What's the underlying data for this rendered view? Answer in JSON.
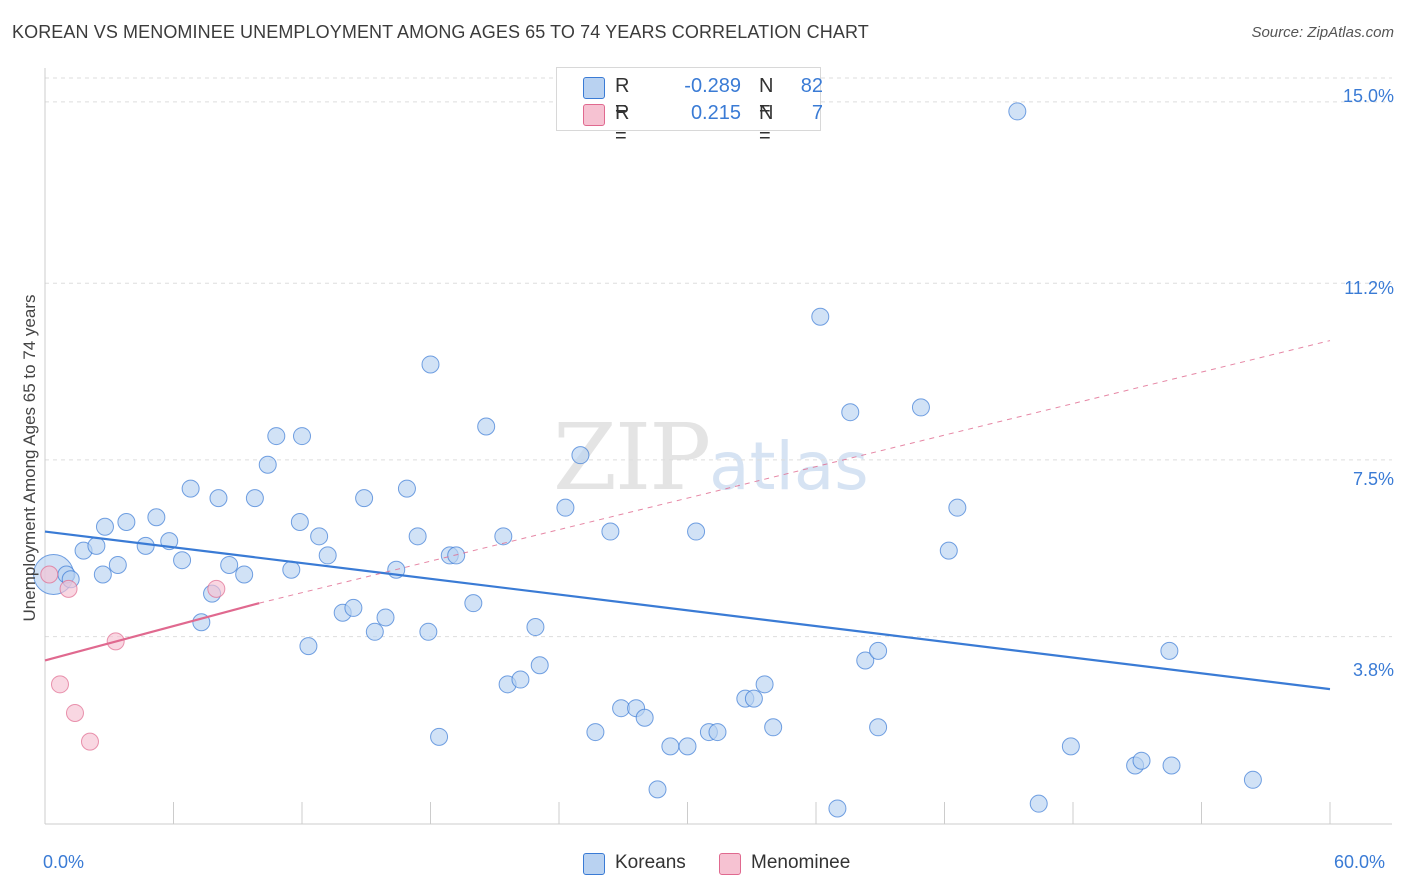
{
  "title": "KOREAN VS MENOMINEE UNEMPLOYMENT AMONG AGES 65 TO 74 YEARS CORRELATION CHART",
  "source": "Source: ZipAtlas.com",
  "watermark": {
    "zip": "ZIP",
    "atlas": "atlas"
  },
  "colors": {
    "blue": "#3a7bd5",
    "blue_fill": "#b9d2f1",
    "pink": "#e0698f",
    "pink_fill": "#f6c2d2",
    "grid": "#dddddd"
  },
  "legend": {
    "rows": [
      {
        "r_label": "R =",
        "r_value": "-0.289",
        "n_label": "N =",
        "n_value": "82"
      },
      {
        "r_label": "R =",
        "r_value": "0.215",
        "n_label": "N =",
        "n_value": "7"
      }
    ]
  },
  "chart_data": {
    "type": "scatter",
    "title": "KOREAN VS MENOMINEE UNEMPLOYMENT AMONG AGES 65 TO 74 YEARS CORRELATION CHART",
    "xlabel": "",
    "ylabel": "Unemployment Among Ages 65 to 74 years",
    "xlim": [
      0,
      60
    ],
    "ylim": [
      0,
      15.5
    ],
    "x_tick_labels": [
      "0.0%",
      "60.0%"
    ],
    "y_ticks": [
      3.8,
      7.5,
      11.2,
      15.0
    ],
    "y_tick_labels": [
      "3.8%",
      "7.5%",
      "11.2%",
      "15.0%"
    ],
    "grid": true,
    "legend_position": "top-center",
    "series": [
      {
        "name": "Koreans",
        "color": "#3a7bd5",
        "points": [
          [
            0.4,
            5.1
          ],
          [
            1.0,
            5.1
          ],
          [
            1.2,
            5.0
          ],
          [
            1.8,
            5.6
          ],
          [
            2.4,
            5.7
          ],
          [
            2.7,
            5.1
          ],
          [
            2.8,
            6.1
          ],
          [
            3.4,
            5.3
          ],
          [
            3.8,
            6.2
          ],
          [
            4.7,
            5.7
          ],
          [
            5.2,
            6.3
          ],
          [
            5.8,
            5.8
          ],
          [
            6.4,
            5.4
          ],
          [
            6.8,
            6.9
          ],
          [
            7.3,
            4.1
          ],
          [
            7.8,
            4.7
          ],
          [
            8.1,
            6.7
          ],
          [
            8.6,
            5.3
          ],
          [
            9.3,
            5.1
          ],
          [
            9.8,
            6.7
          ],
          [
            10.4,
            7.4
          ],
          [
            10.8,
            8.0
          ],
          [
            11.5,
            5.2
          ],
          [
            11.9,
            6.2
          ],
          [
            12.3,
            3.6
          ],
          [
            12.8,
            5.9
          ],
          [
            13.2,
            5.5
          ],
          [
            13.9,
            4.3
          ],
          [
            14.4,
            4.4
          ],
          [
            14.9,
            6.7
          ],
          [
            15.4,
            3.9
          ],
          [
            15.9,
            4.2
          ],
          [
            16.4,
            5.2
          ],
          [
            16.9,
            6.9
          ],
          [
            17.4,
            5.9
          ],
          [
            17.9,
            3.9
          ],
          [
            18.4,
            1.7
          ],
          [
            18.9,
            5.5
          ],
          [
            19.2,
            5.5
          ],
          [
            20.0,
            4.5
          ],
          [
            20.6,
            8.2
          ],
          [
            21.4,
            5.9
          ],
          [
            21.6,
            2.8
          ],
          [
            22.2,
            2.9
          ],
          [
            22.9,
            4.0
          ],
          [
            23.1,
            3.2
          ],
          [
            24.3,
            6.5
          ],
          [
            25.0,
            7.6
          ],
          [
            25.7,
            1.8
          ],
          [
            26.4,
            6.0
          ],
          [
            26.9,
            2.3
          ],
          [
            27.6,
            2.3
          ],
          [
            28.0,
            2.1
          ],
          [
            28.6,
            0.6
          ],
          [
            29.2,
            1.5
          ],
          [
            30.0,
            1.5
          ],
          [
            30.4,
            6.0
          ],
          [
            31.0,
            1.8
          ],
          [
            31.4,
            1.8
          ],
          [
            32.7,
            2.5
          ],
          [
            33.1,
            2.5
          ],
          [
            33.6,
            2.8
          ],
          [
            34.0,
            1.9
          ],
          [
            37.0,
            0.2
          ],
          [
            37.6,
            8.5
          ],
          [
            38.3,
            3.3
          ],
          [
            38.9,
            3.5
          ],
          [
            38.9,
            1.9
          ],
          [
            40.9,
            8.6
          ],
          [
            42.2,
            5.6
          ],
          [
            42.6,
            6.5
          ],
          [
            45.4,
            14.8
          ],
          [
            46.4,
            0.3
          ],
          [
            47.9,
            1.5
          ],
          [
            50.9,
            1.1
          ],
          [
            51.2,
            1.2
          ],
          [
            52.5,
            3.5
          ],
          [
            52.6,
            1.1
          ],
          [
            56.4,
            0.8
          ],
          [
            12.0,
            8.0
          ],
          [
            36.2,
            10.5
          ],
          [
            18.0,
            9.5
          ]
        ],
        "trend": {
          "x": [
            0,
            60
          ],
          "y": [
            6.0,
            2.7
          ]
        }
      },
      {
        "name": "Menominee",
        "color": "#e0698f",
        "points": [
          [
            0.2,
            5.1
          ],
          [
            1.1,
            4.8
          ],
          [
            0.7,
            2.8
          ],
          [
            1.4,
            2.2
          ],
          [
            2.1,
            1.6
          ],
          [
            3.3,
            3.7
          ],
          [
            8.0,
            4.8
          ]
        ],
        "trend": {
          "x": [
            0,
            10
          ],
          "y": [
            3.3,
            4.5
          ]
        },
        "trend_extended": {
          "x": [
            10,
            60
          ],
          "y": [
            4.5,
            10.0
          ]
        }
      }
    ]
  },
  "bottom_legend": [
    {
      "label": "Koreans"
    },
    {
      "label": "Menominee"
    }
  ]
}
